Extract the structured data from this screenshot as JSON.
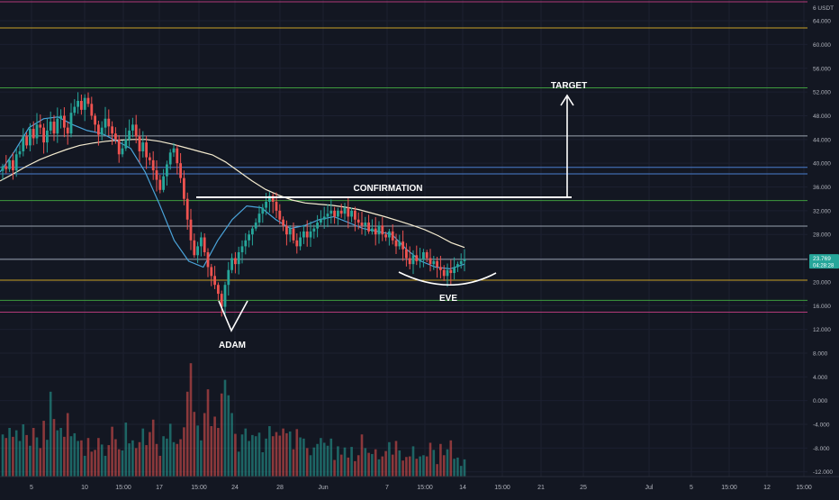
{
  "chart_data": {
    "type": "candlestick",
    "price_axis": {
      "unit_label": "6 USDT",
      "tick_labels": [
        "64.000",
        "60.000",
        "56.000",
        "52.000",
        "48.000",
        "44.000",
        "40.000",
        "36.000",
        "32.000",
        "28.000",
        "24.000",
        "20.000",
        "16.000",
        "12.000",
        "8.000",
        "4.000",
        "0.000",
        "-4.000",
        "-8.000",
        "-12.000"
      ],
      "range": [
        -12.8,
        67.5
      ]
    },
    "time_axis": {
      "tick_labels": [
        "5",
        "10",
        "15:00",
        "17",
        "15:00",
        "24",
        "28",
        "Jun",
        "7",
        "15:00",
        "14",
        "15:00",
        "21",
        "25",
        "Jul",
        "5",
        "15:00",
        "12",
        "15:00"
      ]
    },
    "last_price": {
      "value": "23.769",
      "countdown": "04:28:28",
      "color": "#26a69a"
    },
    "horizontal_levels": [
      {
        "price": 67.2,
        "color": "#b23a78"
      },
      {
        "price": 62.8,
        "color": "#c9a227"
      },
      {
        "price": 52.7,
        "color": "#3e9b3e"
      },
      {
        "price": 44.6,
        "color": "#9aa3b0"
      },
      {
        "price": 39.3,
        "color": "#4a7fd0"
      },
      {
        "price": 38.2,
        "color": "#4a7fd0"
      },
      {
        "price": 33.7,
        "color": "#3e9b3e"
      },
      {
        "price": 29.4,
        "color": "#9aa3b0"
      },
      {
        "price": 23.8,
        "color": "#9aa3b0"
      },
      {
        "price": 20.3,
        "color": "#c9a227"
      },
      {
        "price": 16.9,
        "color": "#3e9b3e"
      },
      {
        "price": 14.9,
        "color": "#b23a78"
      }
    ],
    "closes": [
      39.5,
      39.0,
      40.5,
      38.8,
      41.5,
      42.0,
      44.5,
      43.0,
      45.8,
      44.2,
      46.5,
      46.0,
      43.5,
      45.5,
      47.0,
      45.0,
      47.5,
      48.0,
      46.0,
      45.0,
      48.5,
      49.5,
      50.5,
      49.0,
      51.0,
      50.0,
      48.0,
      46.5,
      44.8,
      46.0,
      47.5,
      46.2,
      45.0,
      44.0,
      41.5,
      42.5,
      44.0,
      45.5,
      46.5,
      44.5,
      42.0,
      43.5,
      41.0,
      40.5,
      38.8,
      37.2,
      35.5,
      37.8,
      39.8,
      41.8,
      42.5,
      40.0,
      37.5,
      34.0,
      30.5,
      27.0,
      24.5,
      26.0,
      27.5,
      25.0,
      22.5,
      21.0,
      19.5,
      18.0,
      15.8,
      19.5,
      22.0,
      24.0,
      23.0,
      25.0,
      26.0,
      27.0,
      28.0,
      29.0,
      30.0,
      31.5,
      32.5,
      33.5,
      34.5,
      33.5,
      32.0,
      30.5,
      29.5,
      28.0,
      29.0,
      27.0,
      26.0,
      27.5,
      28.5,
      27.5,
      28.5,
      29.0,
      30.0,
      30.5,
      31.0,
      31.5,
      32.0,
      31.0,
      32.0,
      31.5,
      32.5,
      31.0,
      32.0,
      30.5,
      30.0,
      29.5,
      30.0,
      28.5,
      29.0,
      28.0,
      29.5,
      28.0,
      27.5,
      28.5,
      27.0,
      26.0,
      26.8,
      25.5,
      24.0,
      23.0,
      24.5,
      23.5,
      23.8,
      25.0,
      24.0,
      23.0,
      23.5,
      22.5,
      22.0,
      21.0,
      22.0,
      21.5,
      22.5,
      23.0,
      23.5,
      23.8
    ],
    "volumes": [
      7.1,
      6.5,
      8.2,
      6.7,
      7.8,
      6.0,
      8.8,
      7.0,
      5.2,
      8.2,
      6.6,
      4.8,
      9.4,
      6.2,
      14.3,
      9.7,
      7.8,
      8.2,
      6.7,
      10.7,
      6.8,
      7.3,
      6.0,
      6.1,
      3.5,
      6.5,
      4.2,
      4.5,
      6.5,
      5.4,
      3.5,
      5.3,
      8.4,
      6.3,
      4.6,
      4.4,
      9.1,
      5.6,
      6.1,
      4.8,
      5.8,
      8.1,
      5.3,
      7.5,
      9.6,
      5.5,
      3.5,
      6.8,
      6.4,
      8.9,
      5.8,
      5.5,
      6.3,
      8.3,
      14.3,
      19.1,
      10.9,
      8.6,
      6.1,
      10.7,
      14.7,
      8.5,
      10.1,
      8.2,
      14.0,
      16.3,
      13.7,
      10.7,
      7.2,
      4.2,
      7.1,
      8.1,
      6.0,
      7.0,
      6.8,
      7.4,
      4.1,
      6.4,
      8.5,
      6.8,
      7.5,
      6.9,
      8.1,
      7.3,
      7.6,
      4.6,
      8.0,
      6.6,
      6.4,
      4.8,
      3.6,
      4.9,
      5.5,
      6.5,
      5.7,
      5.2,
      6.4,
      2.8,
      5.1,
      3.7,
      4.9,
      3.2,
      5.0,
      2.6,
      3.6,
      7.1,
      4.8,
      4.0,
      3.8,
      4.6,
      2.9,
      3.4,
      4.3,
      5.8,
      3.7,
      6.0,
      4.4,
      2.7,
      3.3,
      3.4,
      5.1,
      3.0,
      3.4,
      3.6,
      3.4,
      5.7,
      4.5,
      2.1,
      5.5,
      3.6,
      4.6,
      6.1,
      3.0,
      3.2,
      1.8,
      2.9
    ],
    "moving_averages": [
      {
        "color": "#f5ecd0",
        "values": [
          37.0,
          38.2,
          39.5,
          40.6,
          41.5,
          42.3,
          43.0,
          43.4,
          43.7,
          43.9,
          44.0,
          44.0,
          43.7,
          43.2,
          42.6,
          42.0,
          41.4,
          40.2,
          38.6,
          37.0,
          35.6,
          34.6,
          33.8,
          33.3,
          33.1,
          32.9,
          32.6,
          32.2,
          31.6,
          31.0,
          30.3,
          29.6,
          28.8,
          27.8,
          26.6,
          25.8
        ]
      },
      {
        "color": "#4aa3d9",
        "values": [
          38.5,
          42.0,
          46.0,
          47.5,
          47.8,
          46.5,
          45.5,
          45.0,
          43.8,
          42.5,
          38.5,
          33.0,
          27.0,
          23.5,
          22.5,
          27.0,
          30.5,
          32.8,
          32.5,
          30.5,
          29.0,
          29.5,
          30.5,
          31.0,
          30.0,
          29.0,
          28.5,
          28.0,
          25.5,
          23.5,
          22.5,
          22.2,
          23.0
        ]
      }
    ],
    "annotations": {
      "target_label": "TARGET",
      "confirmation_label": "CONFIRMATION",
      "left_trough_label": "ADAM",
      "right_trough_label": "EVE"
    }
  }
}
